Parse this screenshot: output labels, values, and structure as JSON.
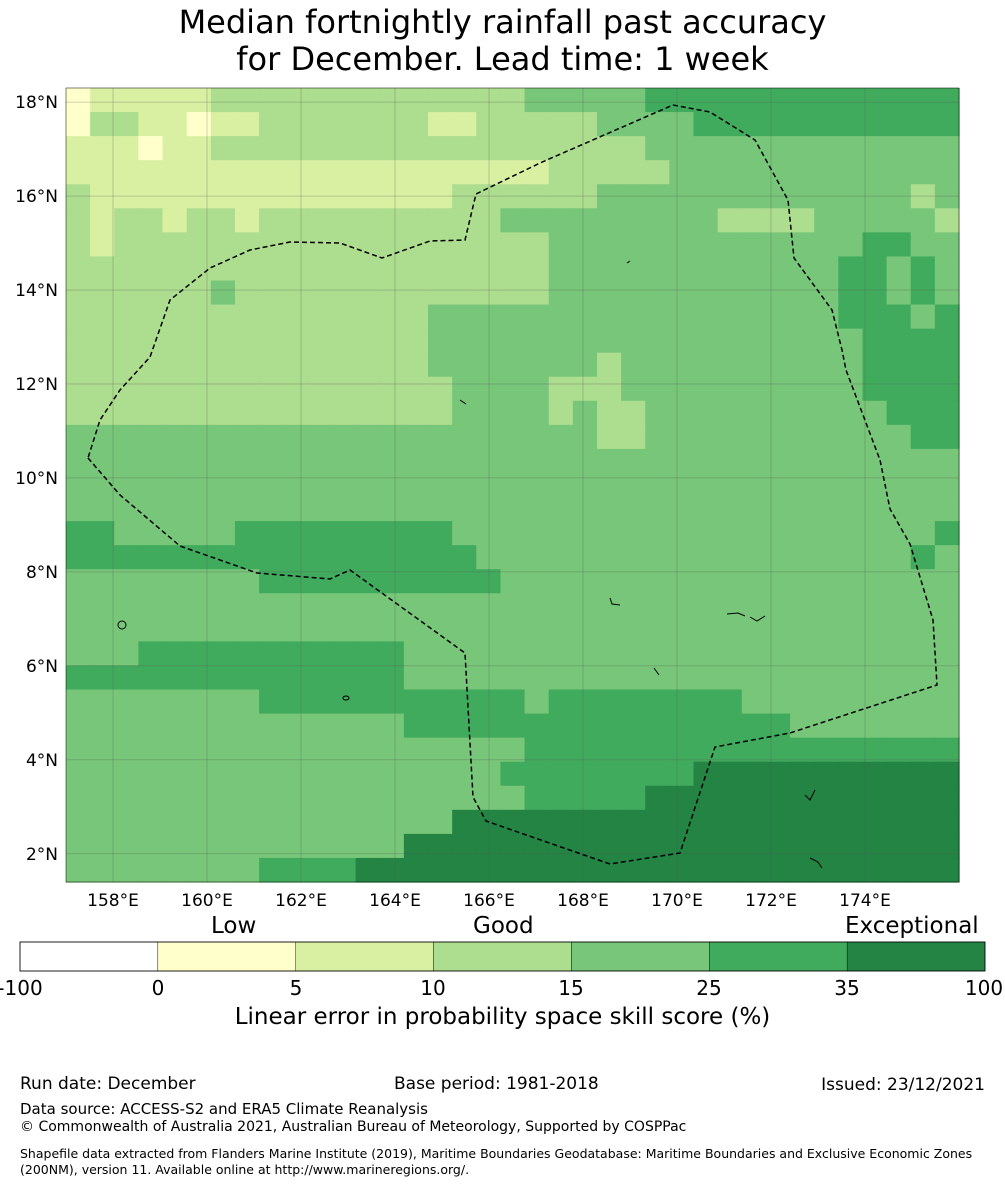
{
  "title": {
    "line1": "Median fortnightly rainfall past accuracy",
    "line2": "for December. Lead time: 1 week"
  },
  "map": {
    "lon_range": [
      157,
      176
    ],
    "lat_range": [
      1.4,
      18.3
    ],
    "lat_ticks": [
      {
        "value": 18,
        "label": "18°N"
      },
      {
        "value": 16,
        "label": "16°N"
      },
      {
        "value": 14,
        "label": "14°N"
      },
      {
        "value": 12,
        "label": "12°N"
      },
      {
        "value": 10,
        "label": "10°N"
      },
      {
        "value": 8,
        "label": "8°N"
      },
      {
        "value": 6,
        "label": "6°N"
      },
      {
        "value": 4,
        "label": "4°N"
      },
      {
        "value": 2,
        "label": "2°N"
      }
    ],
    "lon_ticks": [
      {
        "value": 158,
        "label": "158°E"
      },
      {
        "value": 160,
        "label": "160°E"
      },
      {
        "value": 162,
        "label": "162°E"
      },
      {
        "value": 164,
        "label": "164°E"
      },
      {
        "value": 166,
        "label": "166°E"
      },
      {
        "value": 168,
        "label": "168°E"
      },
      {
        "value": 170,
        "label": "170°E"
      },
      {
        "value": 172,
        "label": "172°E"
      },
      {
        "value": 174,
        "label": "174°E"
      }
    ],
    "grid_lines": true,
    "category_colors": [
      "#ffffff",
      "#ffffcc",
      "#d9f0a3",
      "#addd8e",
      "#78c679",
      "#41ab5d",
      "#238443"
    ],
    "grid_rows_north_to_south": [
      "1222223333333333333444445555555555555",
      "1332212233333332233333444455555555555",
      "2221223333333333333333334444444444444",
      "2222222222222222222233333444444444444",
      "3222222222222222333333444444444444434",
      "3233233233333333334444444443333444443",
      "3233333333333333333344444444444445544",
      "3333333333333333333344444444444455454",
      "3333334333333333333344444444444455454",
      "3333333333333334444444444444444455545",
      "3333333333333334444444444444444445555",
      "3333333333333334444444344444444445555",
      "3333333333333333444433344444444445555",
      "3333333333333333444434334444444444555",
      "4444444444444444444444334444444444455",
      "4444444444444444444444444444444444444",
      "4444444444444444444444444444444444444",
      "4444444444444444444444444444444444444",
      "5544444555555555444444444444444444445",
      "5555555555555555544444444444444444454",
      "4444444455555555554444444444444444444",
      "4444444444444444444444444444444444444",
      "4444444444444444444444444444444444444",
      "4445555555555544444444444444444444444",
      "5555555555555544444444444444444444444",
      "4444444455555555555455555555444444444",
      "4444444444444455555555555555554444444",
      "4444444444444444444555555555555555555",
      "4444444444444444445555555566666666666",
      "4444444444444444444555556666666666666",
      "4444444444444444666666666666666666666",
      "4444444444444466666666666666666666666",
      "4444444455556666666666666666666666666"
    ]
  },
  "colorbar": {
    "top_labels": [
      "Low",
      "Good",
      "Exceptional"
    ],
    "ticks": [
      "-100",
      "0",
      "5",
      "10",
      "15",
      "25",
      "35",
      "100"
    ],
    "colors": [
      "#ffffff",
      "#ffffcc",
      "#d9f0a3",
      "#addd8e",
      "#78c679",
      "#41ab5d",
      "#238443"
    ],
    "title": "Linear error in probability space skill score (%)"
  },
  "footer": {
    "run_date": "Run date: December",
    "base_period": "Base period: 1981-2018",
    "issued": "Issued: 23/12/2021",
    "data_source": "Data source: ACCESS-S2 and ERA5 Climate Reanalysis",
    "copyright": "© Commonwealth of Australia 2021, Australian Bureau of Meteorology, Supported by COSPPac",
    "shapefile": "Shapefile data extracted from Flanders Marine Institute (2019), Maritime Boundaries Geodatabase: Maritime Boundaries and Exclusive Economic Zones (200NM), version 11. Available online at http://www.marineregions.org/."
  }
}
